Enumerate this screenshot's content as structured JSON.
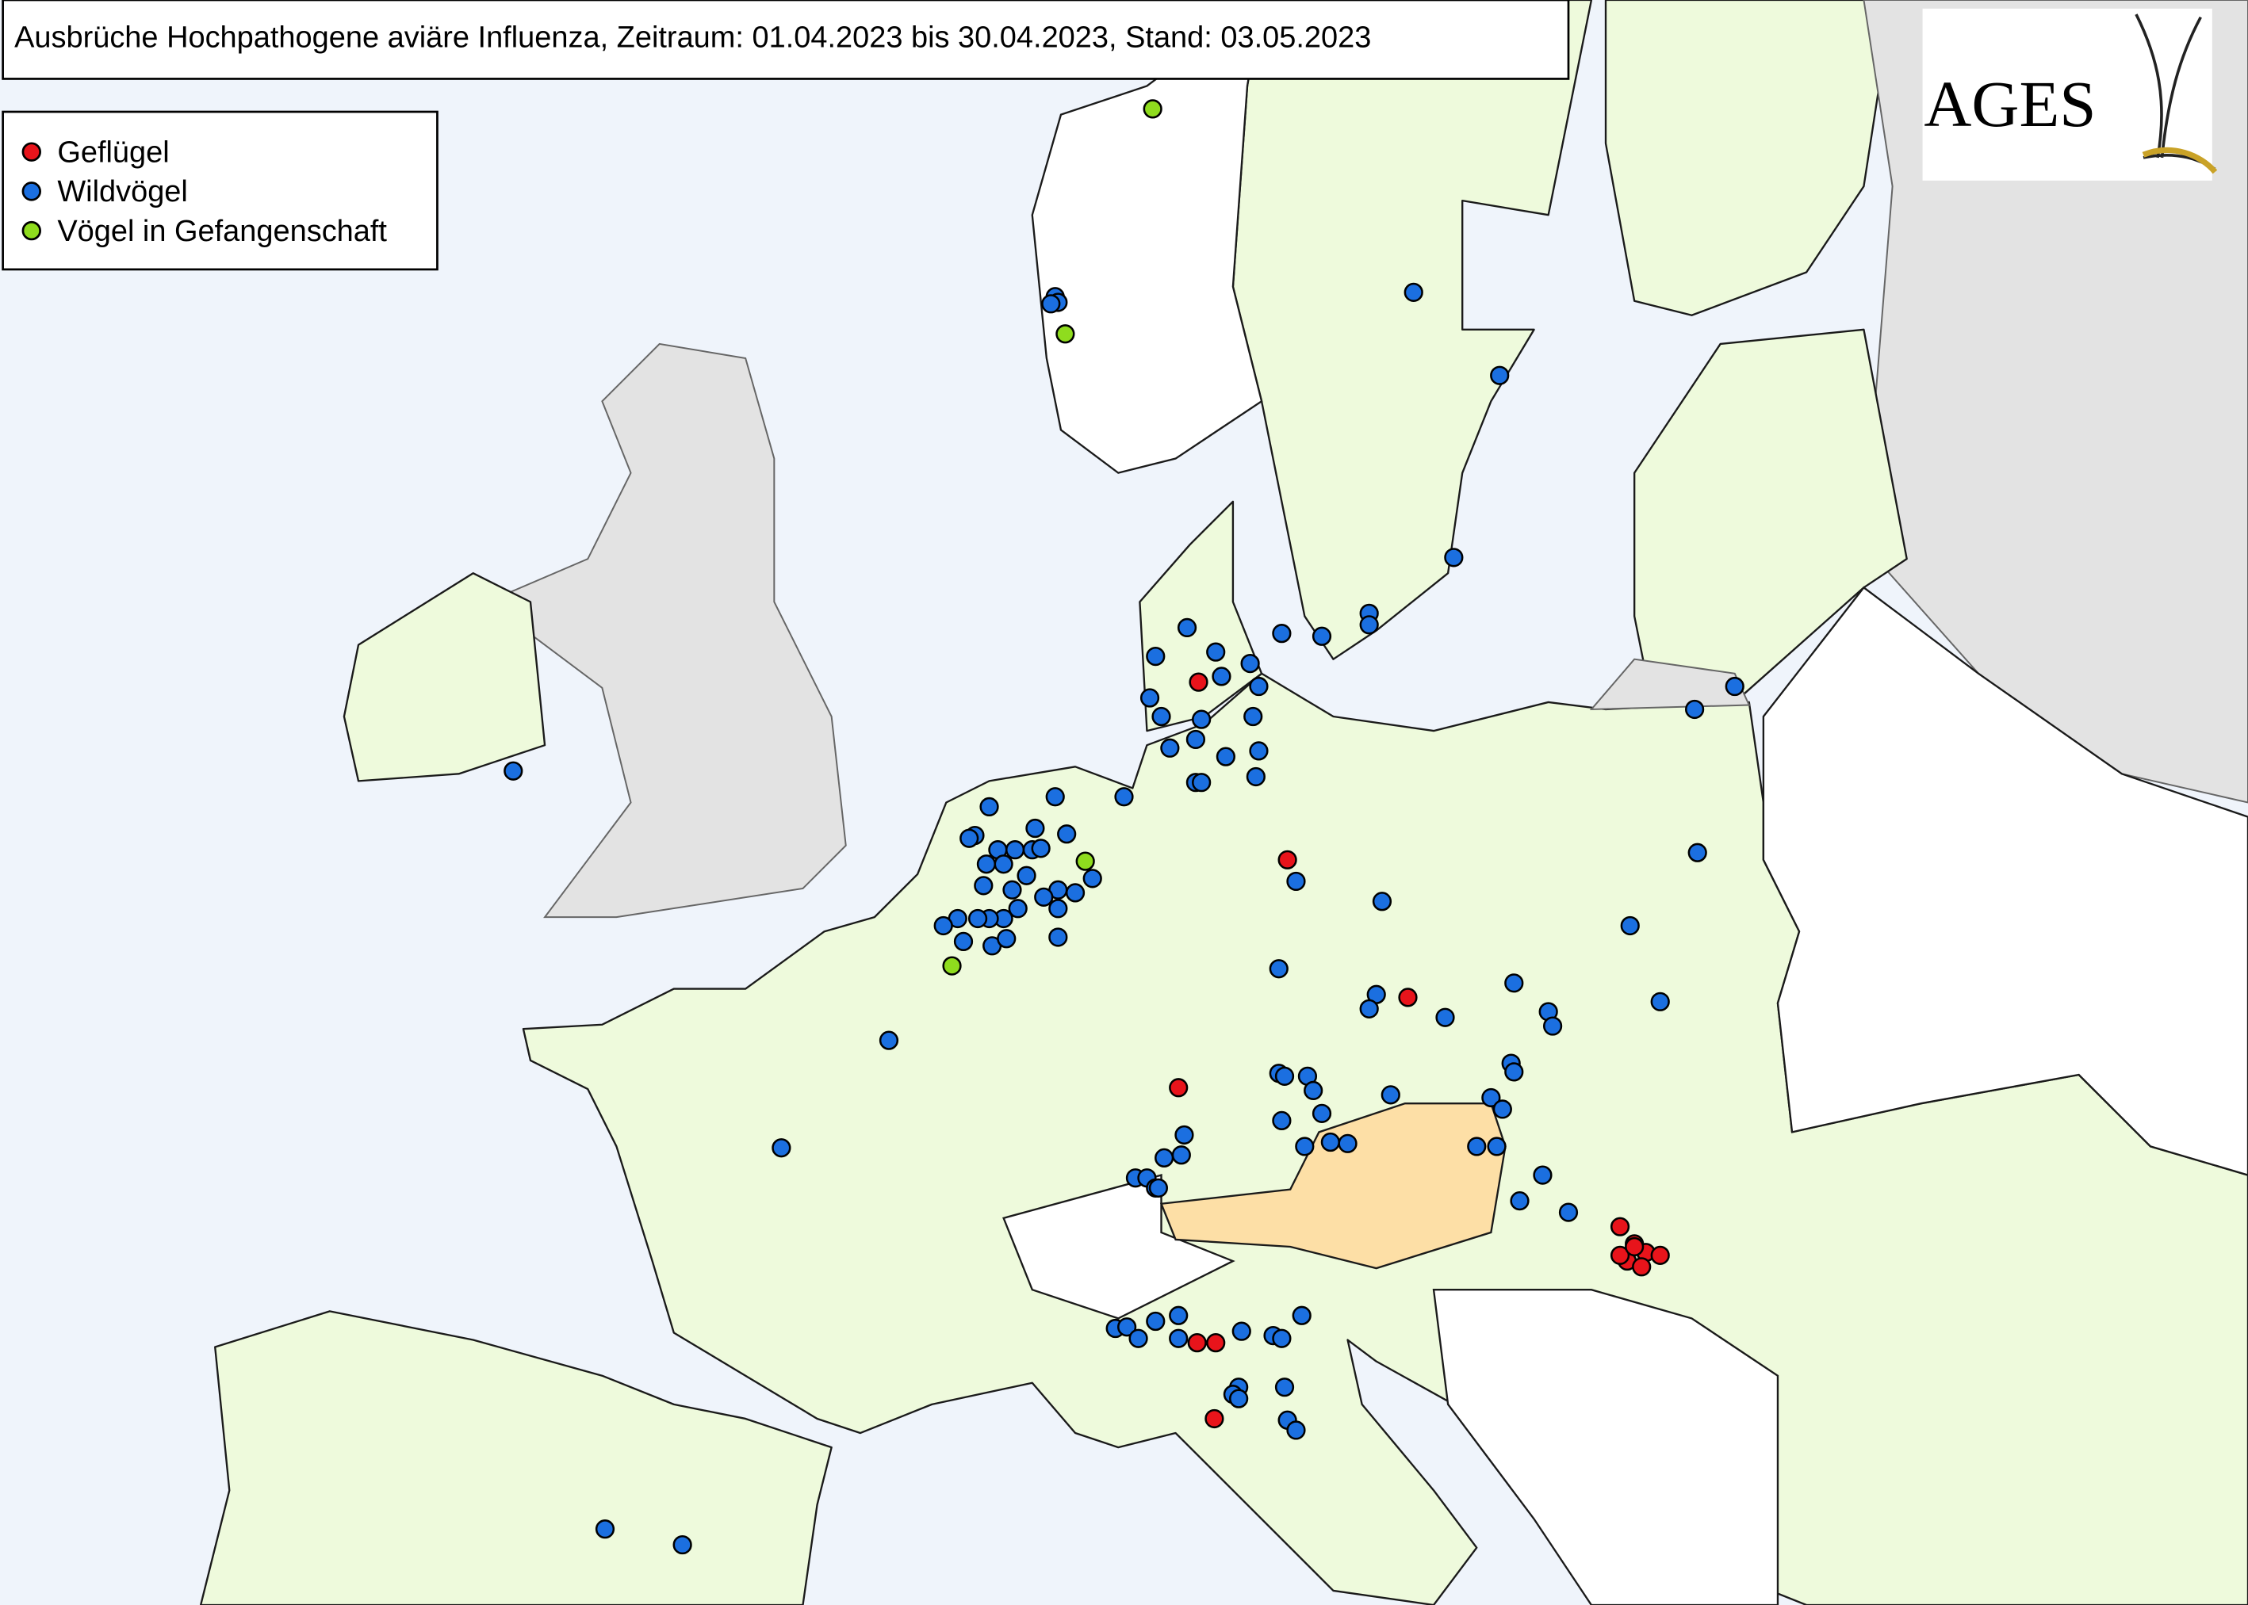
{
  "title": "Ausbrüche Hochpathogene aviäre Influenza, Zeitraum: 01.04.2023 bis 30.04.2023, Stand: 03.05.2023",
  "legend": {
    "items": [
      {
        "label": "Geflügel",
        "color": "#e8141b"
      },
      {
        "label": "Wildvögel",
        "color": "#1b6fe0"
      },
      {
        "label": "Vögel in Gefangenschaft",
        "color": "#8fdc1e"
      }
    ]
  },
  "logo": {
    "text": "AGES"
  }
}
